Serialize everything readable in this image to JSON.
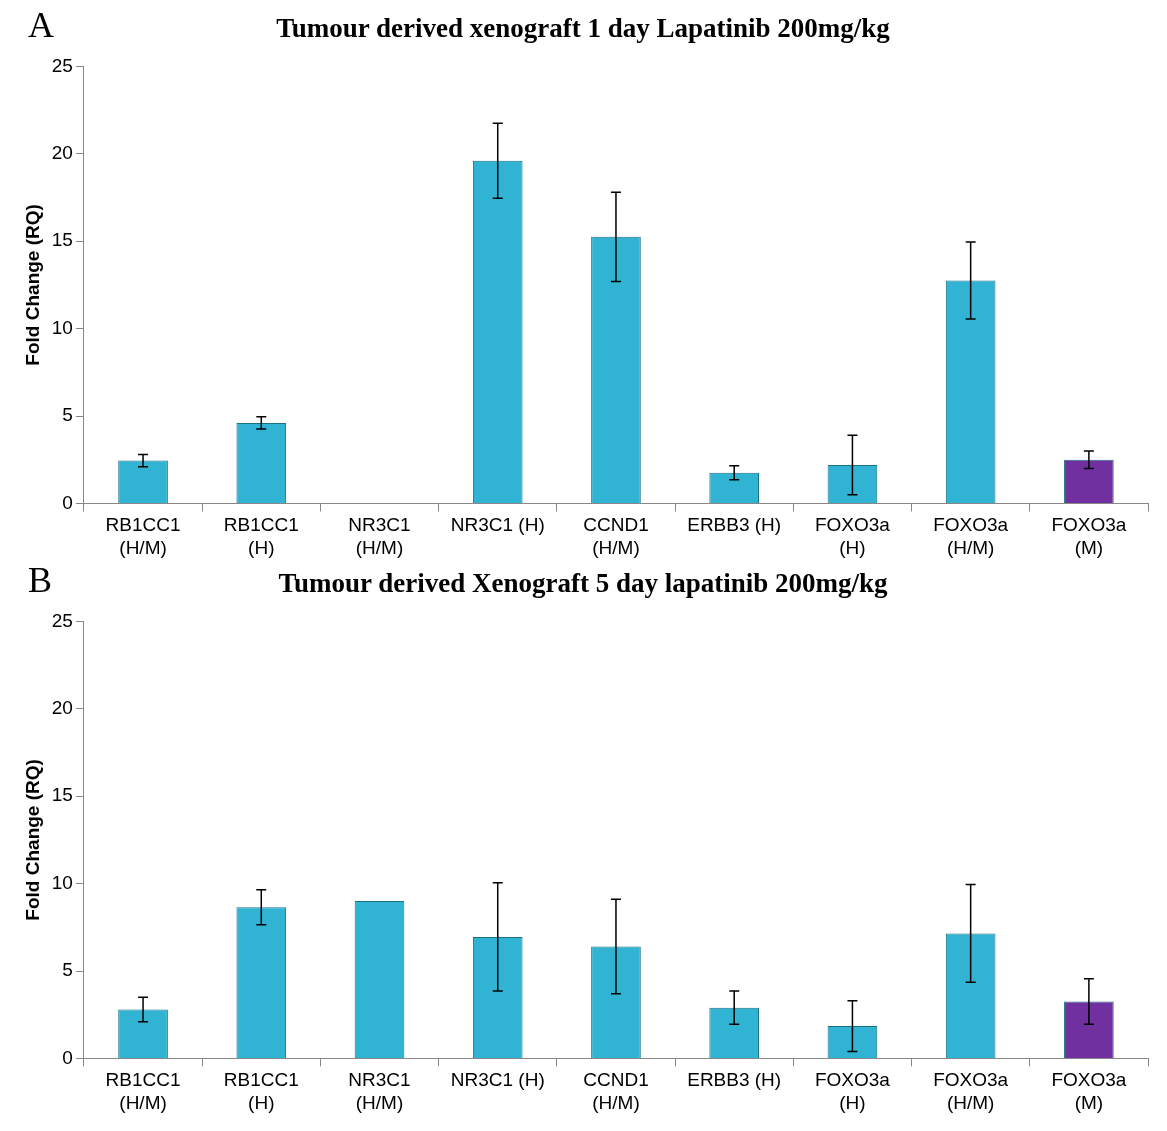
{
  "chart_data": [
    {
      "type": "bar",
      "title": "Tumour derived xenograft 1 day Lapatinib 200mg/kg",
      "ylabel": "Fold Change (RQ)",
      "annotations": [
        "A"
      ],
      "categories": [
        "RB1CC1 (H/M)",
        "RB1CC1 (H)",
        "NR3C1 (H/M)",
        "NR3C1 (H)",
        "CCND1 (H/M)",
        "ERBB3 (H)",
        "FOXO3a (H)",
        "FOXO3a (H/M)",
        "FOXO3a (M)"
      ],
      "values": [
        2.45,
        4.6,
        null,
        19.6,
        15.25,
        1.75,
        2.2,
        12.75,
        2.5
      ],
      "errors": [
        0.35,
        0.35,
        null,
        2.15,
        2.55,
        0.4,
        1.7,
        2.2,
        0.5
      ],
      "colors": [
        "#31b4d4",
        "#31b4d4",
        "#31b4d4",
        "#31b4d4",
        "#31b4d4",
        "#31b4d4",
        "#31b4d4",
        "#31b4d4",
        "#7030a0"
      ],
      "ylim": [
        0,
        25
      ],
      "yticks": [
        0,
        5,
        10,
        15,
        20,
        25
      ],
      "legend": false
    },
    {
      "type": "bar",
      "title": "Tumour derived Xenograft 5 day lapatinib 200mg/kg",
      "ylabel": "Fold Change (RQ)",
      "annotations": [
        "B"
      ],
      "categories": [
        "RB1CC1 (H/M)",
        "RB1CC1 (H)",
        "NR3C1 (H/M)",
        "NR3C1 (H)",
        "CCND1 (H/M)",
        "ERBB3 (H)",
        "FOXO3a (H)",
        "FOXO3a (H/M)",
        "FOXO3a (M)"
      ],
      "values": [
        2.8,
        8.65,
        9.0,
        6.95,
        6.4,
        2.9,
        1.85,
        7.15,
        3.25
      ],
      "errors": [
        0.7,
        1.0,
        null,
        3.1,
        2.7,
        0.95,
        1.45,
        2.8,
        1.3
      ],
      "colors": [
        "#31b4d4",
        "#31b4d4",
        "#31b4d4",
        "#31b4d4",
        "#31b4d4",
        "#31b4d4",
        "#31b4d4",
        "#31b4d4",
        "#7030a0"
      ],
      "ylim": [
        0,
        25
      ],
      "yticks": [
        0,
        5,
        10,
        15,
        20,
        25
      ],
      "legend": false
    }
  ]
}
